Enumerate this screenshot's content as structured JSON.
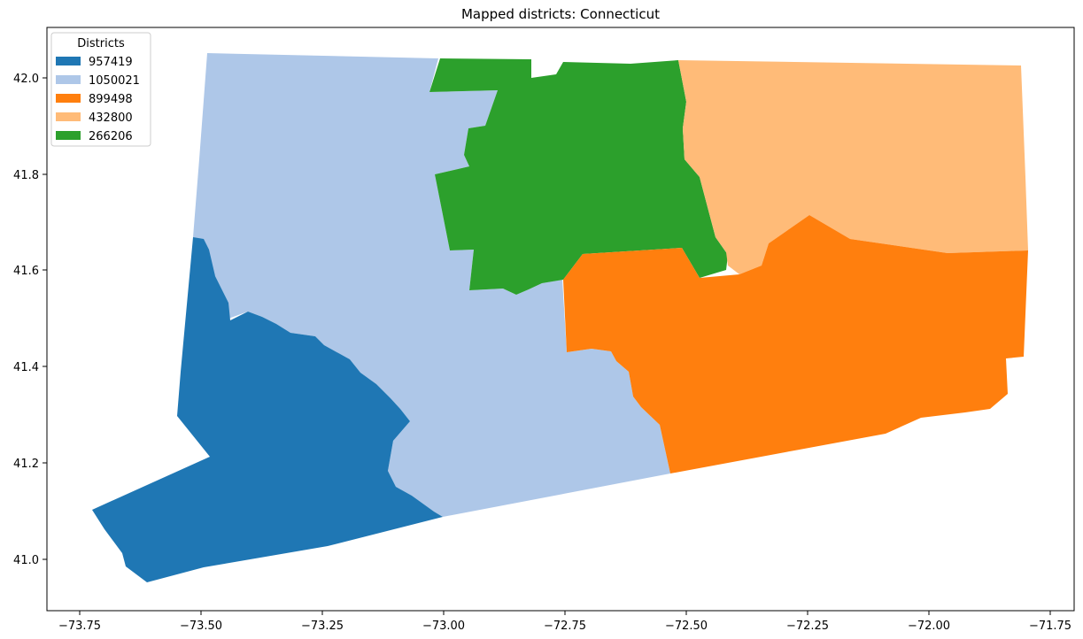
{
  "title": "Mapped districts: Connecticut",
  "legend": {
    "title": "Districts",
    "entries": [
      {
        "label": "957419",
        "color": "#1f77b4"
      },
      {
        "label": "1050021",
        "color": "#aec7e8"
      },
      {
        "label": "899498",
        "color": "#ff7f0e"
      },
      {
        "label": "432800",
        "color": "#ffbb78"
      },
      {
        "label": "266206",
        "color": "#2ca02c"
      }
    ]
  },
  "axes": {
    "x_ticks": [
      "−73.75",
      "−73.50",
      "−73.25",
      "−73.00",
      "−72.75",
      "−72.50",
      "−72.25",
      "−72.00",
      "−71.75"
    ],
    "y_ticks": [
      "41.0",
      "41.2",
      "41.4",
      "41.6",
      "41.8",
      "42.0"
    ]
  }
}
